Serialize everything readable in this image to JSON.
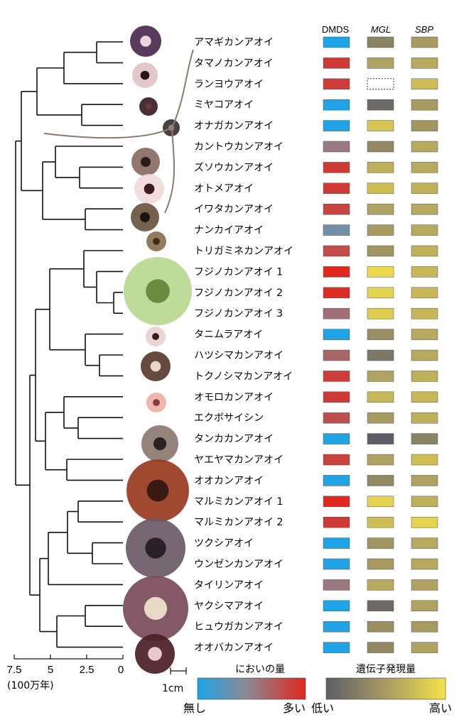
{
  "headers": {
    "dmds": "DMDS",
    "mgl": "MGL",
    "sbp": "SBP"
  },
  "axis": {
    "ticks": [
      "7.5",
      "5",
      "2.5",
      "0"
    ],
    "unit": "(100万年)"
  },
  "scale_label": "1cm",
  "legend_smell": {
    "title": "においの量",
    "low": "無し",
    "high": "多い"
  },
  "legend_expr": {
    "title": "遺伝子発現量",
    "low": "低い",
    "high": "高い"
  },
  "colors": {
    "blue": "#2a9be0",
    "red": "#d9332a",
    "gray": "#6b6b72",
    "yellow": "#f2df4a"
  },
  "species": [
    {
      "name": "アマギカンアオイ",
      "dmds": 0.0,
      "mgl": 0.3,
      "sbp": 0.5
    },
    {
      "name": "タマノカンアオイ",
      "dmds": 0.9,
      "mgl": 0.55,
      "sbp": 0.6
    },
    {
      "name": "ランヨウアオイ",
      "dmds": 0.88,
      "mgl": null,
      "sbp": 0.75
    },
    {
      "name": "ミヤコアオイ",
      "dmds": 0.0,
      "mgl": 0.1,
      "sbp": 0.5
    },
    {
      "name": "オナガカンアオイ",
      "dmds": 0.0,
      "mgl": 0.8,
      "sbp": 0.45
    },
    {
      "name": "カントウカンアオイ",
      "dmds": 0.55,
      "mgl": 0.35,
      "sbp": 0.6
    },
    {
      "name": "ズソウカンアオイ",
      "dmds": 0.9,
      "mgl": 0.65,
      "sbp": 0.6
    },
    {
      "name": "オトメアオイ",
      "dmds": 0.9,
      "mgl": 0.75,
      "sbp": 0.65
    },
    {
      "name": "イワタカンアオイ",
      "dmds": 0.85,
      "mgl": 0.55,
      "sbp": 0.6
    },
    {
      "name": "ナンカイアオイ",
      "dmds": 0.35,
      "mgl": 0.5,
      "sbp": 0.6
    },
    {
      "name": "トリガミネカンアオイ",
      "dmds": 0.8,
      "mgl": 0.45,
      "sbp": 0.65
    },
    {
      "name": "フジノカンアオイ 1",
      "dmds": 1.0,
      "mgl": 0.95,
      "sbp": 0.7
    },
    {
      "name": "フジノカンアオイ 2",
      "dmds": 0.98,
      "mgl": 0.9,
      "sbp": 0.7
    },
    {
      "name": "フジノカンアオイ 3",
      "dmds": 0.6,
      "mgl": 0.85,
      "sbp": 0.7
    },
    {
      "name": "タニムラアオイ",
      "dmds": 0.0,
      "mgl": 0.4,
      "sbp": 0.6
    },
    {
      "name": "ハツシマカンアオイ",
      "dmds": 0.65,
      "mgl": 0.2,
      "sbp": 0.6
    },
    {
      "name": "トクノシマカンアオイ",
      "dmds": 0.88,
      "mgl": 0.55,
      "sbp": 0.65
    },
    {
      "name": "オモロカンアオイ",
      "dmds": 0.9,
      "mgl": 0.7,
      "sbp": 0.7
    },
    {
      "name": "エクボサイシン",
      "dmds": 0.78,
      "mgl": 0.5,
      "sbp": 0.65
    },
    {
      "name": "タンカカンアオイ",
      "dmds": 0.0,
      "mgl": 0.0,
      "sbp": 0.3
    },
    {
      "name": "ヤエヤマカンアオイ",
      "dmds": 0.85,
      "mgl": 0.55,
      "sbp": 0.75
    },
    {
      "name": "オオカンアオイ",
      "dmds": 0.0,
      "mgl": 0.35,
      "sbp": 0.55
    },
    {
      "name": "マルミカンアオイ 1",
      "dmds": 1.0,
      "mgl": 0.9,
      "sbp": 0.65
    },
    {
      "name": "マルミカンアオイ 2",
      "dmds": 0.9,
      "mgl": 0.75,
      "sbp": 0.9
    },
    {
      "name": "ツクシアオイ",
      "dmds": 0.0,
      "mgl": 0.45,
      "sbp": 0.6
    },
    {
      "name": "ウンゼンカンアオイ",
      "dmds": 0.0,
      "mgl": 0.5,
      "sbp": 0.6
    },
    {
      "name": "タイリンアオイ",
      "dmds": 0.55,
      "mgl": 0.6,
      "sbp": 0.55
    },
    {
      "name": "ヤクシマアオイ",
      "dmds": 0.0,
      "mgl": 0.1,
      "sbp": 0.55
    },
    {
      "name": "ヒュウガカンアオイ",
      "dmds": 0.0,
      "mgl": 0.4,
      "sbp": 0.5
    },
    {
      "name": "オオバカンアオイ",
      "dmds": 0.0,
      "mgl": 0.35,
      "sbp": 0.55
    }
  ]
}
